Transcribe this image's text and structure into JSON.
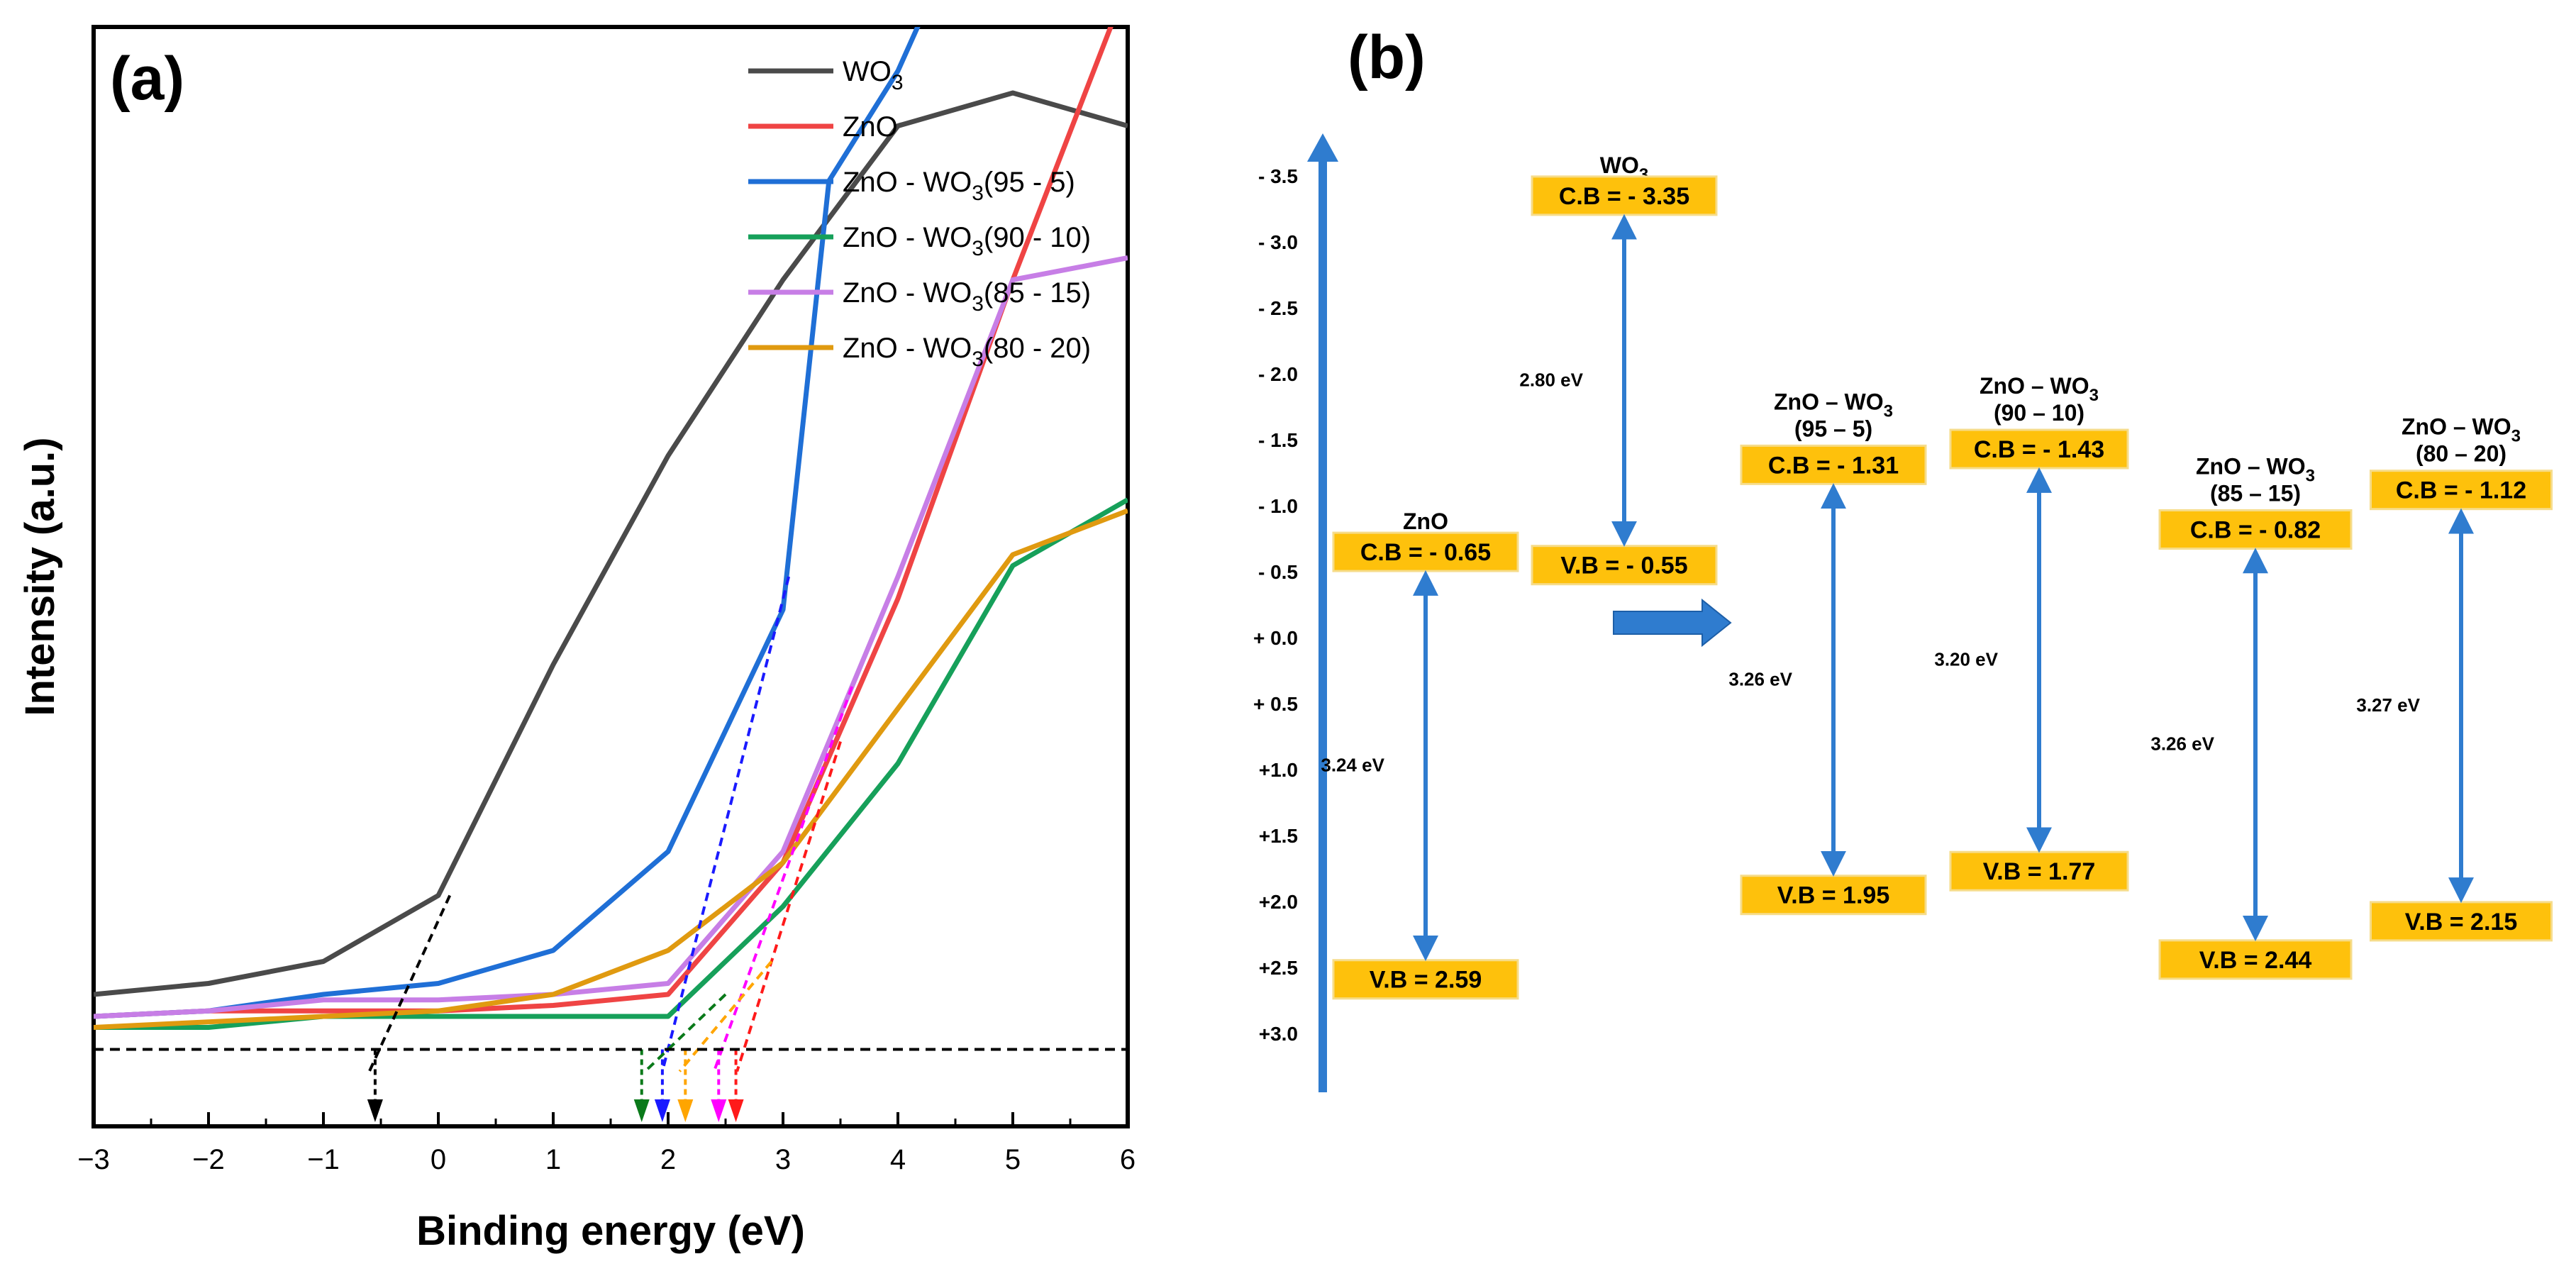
{
  "chart_data": [
    {
      "type": "line",
      "panel_label": "(a)",
      "xlabel": "Binding energy (eV)",
      "ylabel": "Intensity (a.u.)",
      "xlim": [
        -3,
        6
      ],
      "ylim": [
        0,
        100
      ],
      "xticks": [
        "−3",
        "−2",
        "−1",
        "0",
        "1",
        "2",
        "3",
        "4",
        "5",
        "6"
      ],
      "baseline_y": 7,
      "legend_position": "top-right",
      "series": [
        {
          "name": "WO3",
          "label_main": "WO",
          "label_sub": "3",
          "label_rest": "",
          "color": "#4a4a4a",
          "x": [
            -3,
            -2,
            -1,
            0,
            1,
            2,
            3,
            4,
            5,
            6
          ],
          "y": [
            12,
            13,
            15,
            21,
            42,
            61,
            77,
            91,
            94,
            91
          ],
          "onset": -0.55,
          "onset_color": "#000000",
          "tangent": [
            [
              -0.6,
              5
            ],
            [
              0.1,
              21
            ]
          ]
        },
        {
          "name": "ZnO",
          "label_main": "ZnO",
          "label_sub": "",
          "label_rest": "",
          "color": "#ef4444",
          "x": [
            -3,
            -2,
            -1,
            0,
            1,
            2,
            3,
            4,
            5,
            6
          ],
          "y": [
            10,
            10.5,
            10.5,
            10.5,
            11,
            12,
            24,
            48,
            77,
            104
          ],
          "onset": 2.59,
          "onset_color": "#ff1a1a",
          "tangent": [
            [
              2.6,
              5
            ],
            [
              3.5,
              35
            ]
          ]
        },
        {
          "name": "ZnO - WO3(95 - 5)",
          "label_main": "ZnO - WO",
          "label_sub": "3",
          "label_rest": "(95 - 5)",
          "color": "#1f6fd6",
          "x": [
            -3,
            -2,
            -1,
            0,
            1,
            2,
            3,
            3.4,
            4,
            4.3,
            6
          ],
          "y": [
            10,
            10.5,
            12,
            13,
            16,
            25,
            47,
            86,
            96,
            103,
            104
          ],
          "onset": 1.95,
          "onset_color": "#1a1aff",
          "tangent": [
            [
              1.95,
              5
            ],
            [
              3.05,
              50
            ]
          ]
        },
        {
          "name": "ZnO - WO3(90 - 10)",
          "label_main": "ZnO - WO",
          "label_sub": "3",
          "label_rest": "(90 - 10)",
          "color": "#16a05a",
          "x": [
            -3,
            -2,
            -1,
            0,
            1,
            2,
            3,
            4,
            5,
            6
          ],
          "y": [
            9,
            9,
            10,
            10,
            10,
            10,
            20,
            33,
            51,
            57
          ],
          "onset": 1.77,
          "onset_color": "#0a7a1a",
          "tangent": [
            [
              1.8,
              5
            ],
            [
              2.5,
              12
            ]
          ]
        },
        {
          "name": "ZnO - WO3(85 - 15)",
          "label_main": "ZnO - WO",
          "label_sub": "3",
          "label_rest": "(85 - 15)",
          "color": "#c77ee6",
          "x": [
            -3,
            -2,
            -1,
            0,
            1,
            2,
            3,
            4,
            5,
            6
          ],
          "y": [
            10,
            10.5,
            11.5,
            11.5,
            12,
            13,
            25,
            50,
            77,
            79
          ],
          "onset": 2.44,
          "onset_color": "#ff00ff",
          "tangent": [
            [
              2.4,
              5
            ],
            [
              3.6,
              40
            ]
          ]
        },
        {
          "name": "ZnO - WO3(80 - 20)",
          "label_main": "ZnO - WO",
          "label_sub": "3",
          "label_rest": "(80 - 20)",
          "color": "#e09a10",
          "x": [
            -3,
            -2,
            -1,
            0,
            1,
            2,
            3,
            4,
            5,
            6
          ],
          "y": [
            9,
            9.5,
            10,
            10.5,
            12,
            16,
            24,
            38,
            52,
            56
          ],
          "onset": 2.15,
          "onset_color": "#ffa500",
          "tangent": [
            [
              2.1,
              5
            ],
            [
              2.9,
              15
            ]
          ]
        }
      ]
    },
    {
      "type": "band-diagram",
      "panel_label": "(b)",
      "scale_labels": [
        "- 3.5",
        "- 3.0",
        "- 2.5",
        "- 2.0",
        "- 1.5",
        "- 1.0",
        "- 0.5",
        "+ 0.0",
        "+ 0.5",
        "+1.0",
        "+1.5",
        "+2.0",
        "+2.5",
        "+3.0"
      ],
      "scale_values": [
        -3.5,
        -3.0,
        -2.5,
        -2.0,
        -1.5,
        -1.0,
        -0.5,
        0.0,
        0.5,
        1.0,
        1.5,
        2.0,
        2.5,
        3.0
      ],
      "materials": [
        {
          "name_main": "ZnO",
          "name_sub": "",
          "name_line2": "",
          "cb": -0.65,
          "vb": 2.59,
          "gap": 3.24,
          "cb_label": "C.B = - 0.65",
          "vb_label": "V.B = 2.59",
          "gap_label": "3.24 eV"
        },
        {
          "name_main": "WO",
          "name_sub": "3",
          "name_line2": "",
          "cb": -3.35,
          "vb": -0.55,
          "gap": 2.8,
          "cb_label": "C.B = - 3.35",
          "vb_label": "V.B = - 0.55",
          "gap_label": "2.80 eV"
        },
        {
          "name_main": "ZnO – WO",
          "name_sub": "3",
          "name_line2": "(95 – 5)",
          "cb": -1.31,
          "vb": 1.95,
          "gap": 3.26,
          "cb_label": "C.B = - 1.31",
          "vb_label": "V.B = 1.95",
          "gap_label": "3.26 eV"
        },
        {
          "name_main": "ZnO – WO",
          "name_sub": "3",
          "name_line2": "(90 – 10)",
          "cb": -1.43,
          "vb": 1.77,
          "gap": 3.2,
          "cb_label": "C.B = - 1.43",
          "vb_label": "V.B = 1.77",
          "gap_label": "3.20 eV"
        },
        {
          "name_main": "ZnO – WO",
          "name_sub": "3",
          "name_line2": "(85 – 15)",
          "cb": -0.82,
          "vb": 2.44,
          "gap": 3.26,
          "cb_label": "C.B = - 0.82",
          "vb_label": "V.B = 2.44",
          "gap_label": "3.26 eV"
        },
        {
          "name_main": "ZnO – WO",
          "name_sub": "3",
          "name_line2": "(80 – 20)",
          "cb": -1.12,
          "vb": 2.15,
          "gap": 3.27,
          "cb_label": "C.B = - 1.12",
          "vb_label": "V.B = 2.15",
          "gap_label": "3.27 eV"
        }
      ],
      "colors": {
        "box": "#fec10c",
        "arrow": "#2f7ccf"
      }
    }
  ]
}
